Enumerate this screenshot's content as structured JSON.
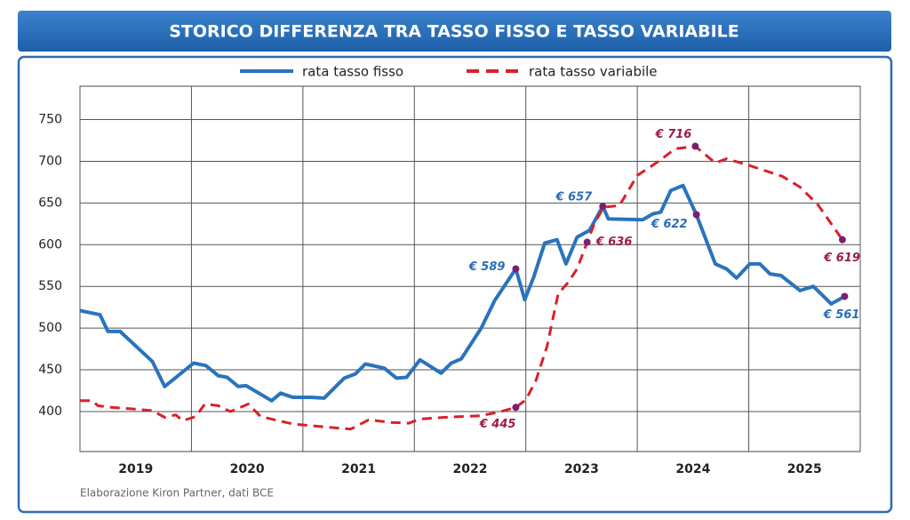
{
  "chart_data": {
    "type": "line",
    "title": "STORICO DIFFERENZA TRA TASSO FISSO E TASSO VARIABILE",
    "source": "Elaborazione Kiron Partner, dati BCE",
    "categories": [
      "2019",
      "2020",
      "2021",
      "2022",
      "2023",
      "2024",
      "2025"
    ],
    "xlim": [
      2019,
      2026
    ],
    "xticks": [
      2019,
      2020,
      2021,
      2022,
      2023,
      2024,
      2025,
      2026
    ],
    "ylim": [
      352,
      790
    ],
    "yticks": [
      400,
      450,
      500,
      550,
      600,
      650,
      700,
      750
    ],
    "grid": true,
    "legend": "top",
    "series": [
      {
        "name": "rata tasso fisso",
        "color": "#2a73bd",
        "style": "solid",
        "x": [
          2019.0,
          2019.18,
          2019.25,
          2019.36,
          2019.65,
          2019.76,
          2020.02,
          2020.13,
          2020.24,
          2020.32,
          2020.42,
          2020.49,
          2020.72,
          2020.8,
          2020.91,
          2021.07,
          2021.19,
          2021.37,
          2021.47,
          2021.56,
          2021.73,
          2021.84,
          2021.93,
          2022.05,
          2022.24,
          2022.33,
          2022.42,
          2022.6,
          2022.72,
          2022.91,
          2022.99,
          2023.07,
          2023.17,
          2023.28,
          2023.36,
          2023.46,
          2023.57,
          2023.69,
          2023.74,
          2024.01,
          2024.05,
          2024.14,
          2024.21,
          2024.3,
          2024.41,
          2024.53,
          2024.7,
          2024.8,
          2024.89,
          2025.01,
          2025.1,
          2025.19,
          2025.29,
          2025.46,
          2025.58,
          2025.74,
          2025.86
        ],
        "values": [
          521,
          516,
          496,
          496,
          460,
          430,
          458,
          455,
          443,
          441,
          430,
          431,
          413,
          422,
          417,
          417,
          416,
          440,
          445,
          457,
          452,
          440,
          441,
          462,
          446,
          458,
          463,
          500,
          533,
          571,
          534,
          561,
          602,
          606,
          577,
          609,
          617,
          646,
          631,
          630,
          630,
          637,
          639,
          665,
          671,
          636,
          577,
          571,
          560,
          577,
          577,
          565,
          563,
          545,
          550,
          529,
          538
        ]
      },
      {
        "name": "rata tasso variabile",
        "color": "#d9202a",
        "style": "dashed",
        "x": [
          2019.0,
          2019.11,
          2019.16,
          2019.28,
          2019.48,
          2019.65,
          2019.76,
          2019.86,
          2019.92,
          2020.04,
          2020.12,
          2020.24,
          2020.35,
          2020.51,
          2020.62,
          2020.91,
          2021.15,
          2021.43,
          2021.59,
          2021.79,
          2021.95,
          2022.05,
          2022.27,
          2022.59,
          2022.75,
          2022.91,
          2023.0,
          2023.09,
          2023.19,
          2023.29,
          2023.38,
          2023.46,
          2023.55,
          2023.62,
          2023.7,
          2023.84,
          2024.0,
          2024.18,
          2024.34,
          2024.52,
          2024.7,
          2024.8,
          2024.98,
          2025.3,
          2025.46,
          2025.62,
          2025.84
        ],
        "values": [
          413,
          413,
          407,
          405,
          403,
          401,
          393,
          396,
          389,
          394,
          409,
          407,
          400,
          409,
          394,
          385,
          382,
          379,
          390,
          387,
          386,
          391,
          393,
          395,
          399,
          405,
          414,
          437,
          478,
          541,
          555,
          571,
          603,
          627,
          645,
          647,
          683,
          699,
          715,
          718,
          698,
          703,
          696,
          682,
          669,
          648,
          606
        ]
      }
    ],
    "annotations": [
      "€ 589",
      "€ 657",
      "€ 622",
      "€ 561",
      "€ 445",
      "€ 636",
      "€ 716",
      "€ 619"
    ]
  }
}
